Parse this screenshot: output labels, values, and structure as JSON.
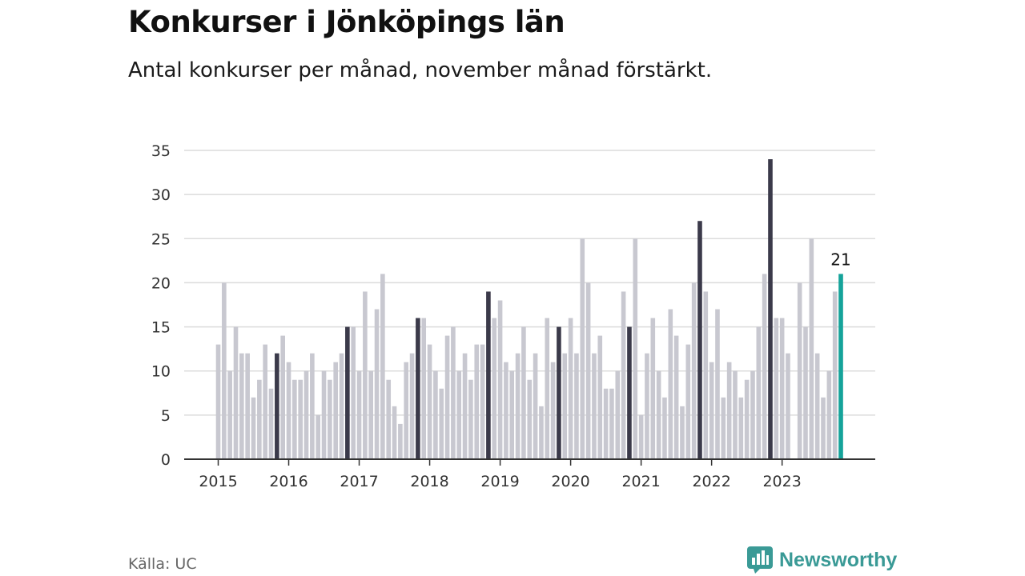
{
  "title": "Konkurser i Jönköpings län",
  "subtitle": "Antal konkurser per månad, november månad förstärkt.",
  "source": "Källa: UC",
  "brand": {
    "name": "Newsworthy",
    "icon": "newsworthy-logo-icon"
  },
  "colors": {
    "bar": "#c8c8d0",
    "highlight": "#3b3a4a",
    "latest": "#15a39a",
    "grid": "#dcdcdc",
    "axis": "#333333",
    "brand": "#3a9a96"
  },
  "chart_data": {
    "type": "bar",
    "title": "",
    "xlabel": "",
    "ylabel": "",
    "ylim": [
      0,
      35
    ],
    "y_ticks": [
      0,
      5,
      10,
      15,
      20,
      25,
      30,
      35
    ],
    "x_tick_labels": [
      "2015",
      "2016",
      "2017",
      "2018",
      "2019",
      "2020",
      "2021",
      "2022",
      "2023"
    ],
    "grid": true,
    "start_month": "2015-01",
    "highlight_month": "November",
    "data_label": "21",
    "values": [
      13,
      20,
      10,
      15,
      12,
      12,
      7,
      9,
      13,
      8,
      12,
      14,
      11,
      9,
      9,
      10,
      12,
      5,
      10,
      9,
      11,
      12,
      15,
      15,
      10,
      19,
      10,
      17,
      21,
      9,
      6,
      4,
      11,
      12,
      16,
      16,
      13,
      10,
      8,
      14,
      15,
      10,
      12,
      9,
      13,
      13,
      19,
      16,
      18,
      11,
      10,
      12,
      15,
      9,
      12,
      6,
      16,
      11,
      15,
      12,
      16,
      12,
      25,
      20,
      12,
      14,
      8,
      8,
      10,
      19,
      15,
      25,
      5,
      12,
      16,
      10,
      7,
      17,
      14,
      6,
      13,
      20,
      27,
      19,
      11,
      17,
      7,
      11,
      10,
      7,
      9,
      10,
      15,
      21,
      34,
      16,
      16,
      12,
      0,
      20,
      15,
      25,
      12,
      7,
      10,
      19,
      21
    ]
  }
}
